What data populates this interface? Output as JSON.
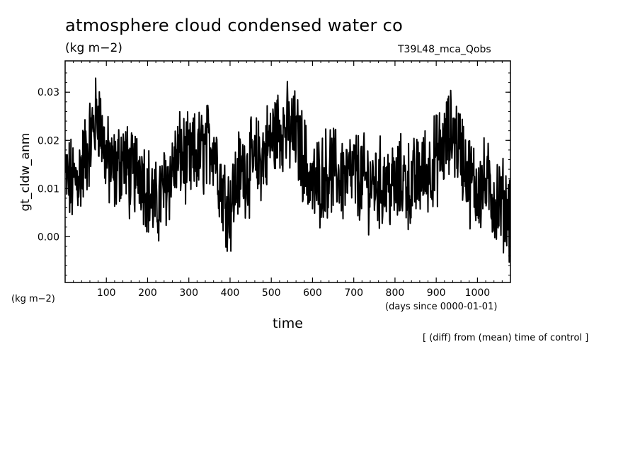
{
  "chart_data": {
    "type": "line",
    "title": "atmosphere cloud condensed water co",
    "units_label": "(kg m−2)",
    "run_label": "T39L48_mca_Qobs",
    "ylabel": "gt_cldw_anm",
    "y_units": "(kg m−2)",
    "xlabel": "time",
    "x_units": "(days since 0000-01-01)",
    "note": "[ (diff) from (mean) time of control ]",
    "xlim": [
      0,
      1080
    ],
    "ylim": [
      -0.0095,
      0.0365
    ],
    "x_ticks": [
      100,
      200,
      300,
      400,
      500,
      600,
      700,
      800,
      900,
      1000
    ],
    "x_tick_labels": [
      "100",
      "200",
      "300",
      "400",
      "500",
      "600",
      "700",
      "800",
      "900",
      "1000"
    ],
    "y_ticks": [
      0.0,
      0.01,
      0.02,
      0.03
    ],
    "y_tick_labels": [
      "0.00",
      "0.01",
      "0.02",
      "0.03"
    ],
    "grid": false,
    "series": [
      {
        "color": "#000000",
        "x": [
          0,
          20,
          40,
          60,
          80,
          100,
          120,
          140,
          160,
          180,
          200,
          220,
          240,
          260,
          280,
          300,
          320,
          340,
          360,
          380,
          400,
          420,
          440,
          460,
          480,
          500,
          520,
          540,
          560,
          580,
          600,
          620,
          640,
          660,
          680,
          700,
          720,
          740,
          760,
          780,
          800,
          820,
          840,
          860,
          880,
          900,
          920,
          940,
          960,
          980,
          1000,
          1020,
          1040,
          1060,
          1080
        ],
        "values": [
          0.012,
          0.011,
          0.014,
          0.02,
          0.026,
          0.016,
          0.013,
          0.017,
          0.012,
          0.015,
          0.01,
          0.006,
          0.01,
          0.014,
          0.017,
          0.015,
          0.017,
          0.018,
          0.02,
          0.01,
          0.006,
          0.013,
          0.014,
          0.015,
          0.017,
          0.02,
          0.023,
          0.022,
          0.021,
          0.016,
          0.01,
          0.012,
          0.014,
          0.013,
          0.012,
          0.013,
          0.012,
          0.011,
          0.011,
          0.011,
          0.01,
          0.012,
          0.01,
          0.013,
          0.014,
          0.016,
          0.019,
          0.022,
          0.018,
          0.012,
          0.01,
          0.011,
          0.008,
          0.007,
          0.005
        ]
      }
    ]
  }
}
